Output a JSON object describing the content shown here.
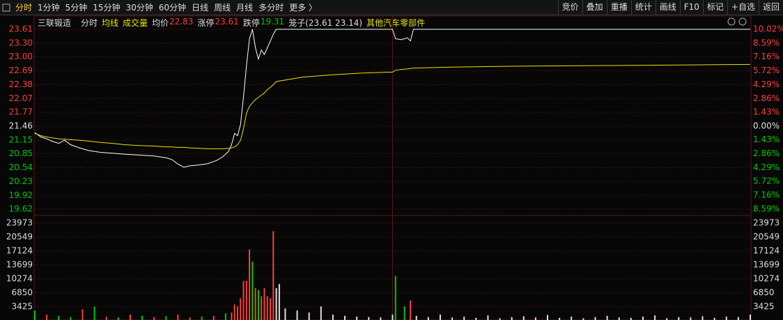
{
  "toolbar": {
    "tabs": [
      "分时",
      "1分钟",
      "5分钟",
      "15分钟",
      "30分钟",
      "60分钟",
      "日线",
      "周线",
      "月线",
      "多分时",
      "更多 〉"
    ],
    "buttons": [
      "竞价",
      "叠加",
      "重播",
      "统计",
      "画线",
      "F10",
      "标记",
      "+自选",
      "返回"
    ]
  },
  "info": {
    "stock": "三联锻造",
    "avg_label": "均价",
    "avg_price": 22.83,
    "limit_up_label": "涨停",
    "limit_up": 23.61,
    "limit_down_label": "跌停",
    "limit_down": 19.31,
    "cage": "笼子(23.61 23.14)",
    "industry": "其他汽车零部件"
  },
  "chart_data": [
    {
      "type": "line",
      "up_color": "#ff3c3c",
      "down_color": "#00c800",
      "flat_color": "#e0e0e0",
      "grid": true,
      "xlim": [
        0,
        240
      ],
      "x": [
        0,
        2,
        4,
        6,
        8,
        10,
        12,
        15,
        18,
        22,
        26,
        30,
        35,
        40,
        44,
        46,
        48,
        50,
        52,
        55,
        58,
        61,
        63,
        65,
        66,
        67,
        68,
        69,
        70,
        71,
        72,
        73,
        74,
        75,
        76,
        77,
        78,
        79,
        80,
        81,
        90,
        100,
        110,
        120,
        121,
        123,
        125,
        126,
        127,
        140,
        160,
        180,
        200,
        220,
        240
      ],
      "series": [
        {
          "name": "分时",
          "color": "#ffffff",
          "values": [
            21.32,
            21.22,
            21.18,
            21.12,
            21.08,
            21.15,
            21.05,
            20.98,
            20.92,
            20.88,
            20.86,
            20.84,
            20.82,
            20.8,
            20.76,
            20.72,
            20.62,
            20.55,
            20.58,
            20.6,
            20.63,
            20.7,
            20.78,
            20.9,
            21.05,
            21.3,
            21.25,
            21.5,
            22.1,
            22.8,
            23.4,
            23.61,
            23.2,
            22.95,
            23.15,
            23.05,
            23.2,
            23.35,
            23.5,
            23.61,
            23.61,
            23.61,
            23.61,
            23.61,
            23.4,
            23.38,
            23.42,
            23.35,
            23.61,
            23.61,
            23.61,
            23.61,
            23.61,
            23.61,
            23.61
          ]
        },
        {
          "name": "均线",
          "color": "#e6e600",
          "values": [
            21.3,
            21.25,
            21.22,
            21.2,
            21.18,
            21.17,
            21.16,
            21.15,
            21.13,
            21.1,
            21.08,
            21.05,
            21.03,
            21.02,
            21.0,
            21.0,
            20.99,
            20.99,
            20.98,
            20.97,
            20.96,
            20.96,
            20.96,
            20.97,
            20.98,
            21.0,
            21.05,
            21.15,
            21.4,
            21.75,
            21.9,
            21.98,
            22.05,
            22.1,
            22.15,
            22.2,
            22.27,
            22.32,
            22.38,
            22.45,
            22.55,
            22.6,
            22.64,
            22.66,
            22.7,
            22.72,
            22.73,
            22.74,
            22.75,
            22.77,
            22.79,
            22.8,
            22.81,
            22.82,
            22.83
          ]
        }
      ],
      "ylim": [
        19.62,
        23.61
      ],
      "yticks": [
        19.62,
        19.92,
        20.23,
        20.54,
        20.85,
        21.15,
        21.46,
        21.77,
        22.07,
        22.38,
        22.69,
        {
          "value": 23,
          "label": "23.00"
        },
        {
          "value": 23.3,
          "label": "23.30"
        },
        23.61
      ],
      "y2lim": [
        -8.59,
        10.02
      ],
      "y2ticks": [
        {
          "value": -8.59,
          "label": "8.59%"
        },
        {
          "value": -7.16,
          "label": "7.16%"
        },
        {
          "value": -5.72,
          "label": "5.72%"
        },
        {
          "value": -4.29,
          "label": "4.29%"
        },
        {
          "value": -2.86,
          "label": "2.86%"
        },
        {
          "value": -1.43,
          "label": "1.43%"
        },
        {
          "value": 0,
          "label": "0.00%"
        },
        {
          "value": 1.43,
          "label": "1.43%"
        },
        {
          "value": 2.86,
          "label": "2.86%"
        },
        {
          "value": 4.29,
          "label": "4.29%"
        },
        {
          "value": 5.72,
          "label": "5.72%"
        },
        {
          "value": 7.16,
          "label": "7.16%"
        },
        {
          "value": 8.59,
          "label": "8.59%"
        },
        {
          "value": 10.02,
          "label": "10.02%"
        }
      ]
    },
    {
      "type": "bar",
      "grid": true,
      "xlim": [
        0,
        240
      ],
      "x": [
        0,
        4,
        8,
        12,
        16,
        20,
        24,
        28,
        32,
        36,
        40,
        44,
        48,
        52,
        56,
        60,
        64,
        66,
        67,
        68,
        69,
        70,
        71,
        72,
        73,
        74,
        75,
        76,
        77,
        78,
        79,
        80,
        81,
        82,
        84,
        88,
        92,
        96,
        100,
        104,
        108,
        112,
        116,
        120,
        121,
        124,
        126,
        128,
        132,
        136,
        140,
        144,
        148,
        152,
        156,
        160,
        164,
        168,
        172,
        176,
        180,
        184,
        188,
        192,
        196,
        200,
        204,
        208,
        212,
        216,
        220,
        224,
        228,
        232,
        236,
        240
      ],
      "series": [
        {
          "name": "成交量",
          "values": [
            2500,
            1500,
            1200,
            900,
            2800,
            3500,
            1000,
            800,
            1500,
            1200,
            900,
            1100,
            1500,
            800,
            1000,
            1200,
            1800,
            2000,
            4000,
            3500,
            5500,
            9800,
            9800,
            17500,
            14500,
            8000,
            7500,
            6000,
            8000,
            6000,
            5500,
            22000,
            8000,
            9000,
            3000,
            2500,
            2000,
            3500,
            1500,
            1200,
            1000,
            900,
            800,
            1500,
            11000,
            3500,
            5000,
            1200,
            900,
            1500,
            800,
            1000,
            700,
            1300,
            600,
            900,
            1100,
            800,
            1400,
            700,
            1000,
            600,
            900,
            1200,
            800,
            700,
            1000,
            1300,
            600,
            900,
            800,
            1100,
            700,
            1000,
            900,
            1500
          ],
          "colors": [
            "#00c800",
            "#ff3c3c",
            "#00c800",
            "#00c800",
            "#ff3c3c",
            "#00c800",
            "#ff3c3c",
            "#00c800",
            "#ff3c3c",
            "#00c800",
            "#ff3c3c",
            "#00c800",
            "#ff3c3c",
            "#ff3c3c",
            "#00c800",
            "#ff3c3c",
            "#00c800",
            "#ff3c3c",
            "#ff3c3c",
            "#ff3c3c",
            "#ff3c3c",
            "#ff3c3c",
            "#ff3c3c",
            "#ff3c3c",
            "#00c800",
            "#ff3c3c",
            "#00c800",
            "#ff3c3c",
            "#ff3c3c",
            "#ff3c3c",
            "#ff3c3c",
            "#ff3c3c",
            "#e0e0e0",
            "#e0e0e0",
            "#e0e0e0",
            "#e0e0e0",
            "#e0e0e0",
            "#e0e0e0",
            "#e0e0e0",
            "#e0e0e0",
            "#e0e0e0",
            "#e0e0e0",
            "#e0e0e0",
            "#e0e0e0",
            "#00c800",
            "#00c800",
            "#ff3c3c",
            "#e0e0e0",
            "#e0e0e0",
            "#e0e0e0",
            "#e0e0e0",
            "#e0e0e0",
            "#e0e0e0",
            "#e0e0e0",
            "#e0e0e0",
            "#e0e0e0",
            "#e0e0e0",
            "#e0e0e0",
            "#e0e0e0",
            "#e0e0e0",
            "#e0e0e0",
            "#e0e0e0",
            "#e0e0e0",
            "#e0e0e0",
            "#e0e0e0",
            "#e0e0e0",
            "#e0e0e0",
            "#e0e0e0",
            "#e0e0e0",
            "#e0e0e0",
            "#e0e0e0",
            "#e0e0e0",
            "#e0e0e0",
            "#e0e0e0",
            "#e0e0e0",
            "#e0e0e0"
          ]
        }
      ],
      "ylim": [
        0,
        23973
      ],
      "yticks": [
        3425,
        6850,
        10274,
        13699,
        17124,
        20549,
        23973
      ]
    }
  ]
}
